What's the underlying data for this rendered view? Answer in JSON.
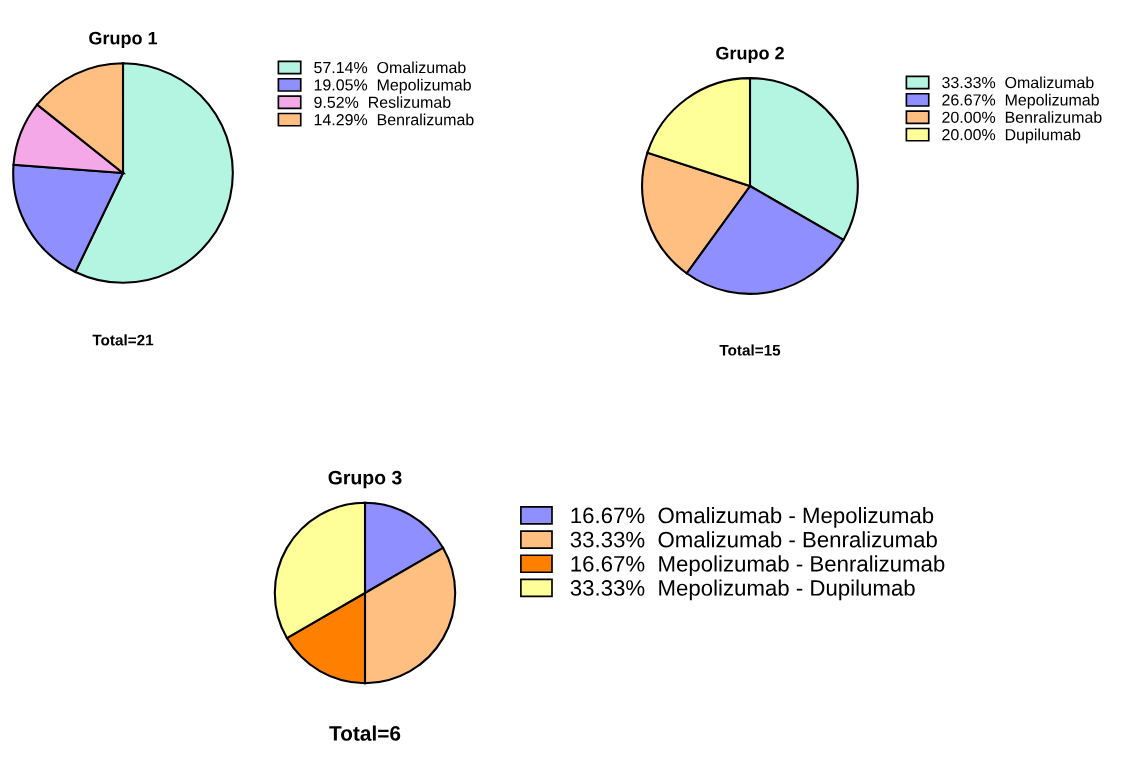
{
  "chart_data": [
    {
      "type": "pie",
      "title": "Grupo 1",
      "categories": [
        "Omalizumab",
        "Mepolizumab",
        "Reslizumab",
        "Benralizumab"
      ],
      "values": [
        57.14,
        19.05,
        9.52,
        14.29
      ],
      "value_labels": [
        "57.14%",
        "19.05%",
        "9.52%",
        "14.29%"
      ],
      "colors": [
        "#b3f5e0",
        "#8f8fff",
        "#f5a8e8",
        "#ffbf80"
      ],
      "legend": "right",
      "annotations": [
        "Total=21"
      ]
    },
    {
      "type": "pie",
      "title": "Grupo 2",
      "categories": [
        "Omalizumab",
        "Mepolizumab",
        "Benralizumab",
        "Dupilumab"
      ],
      "values": [
        33.33,
        26.67,
        20.0,
        20.0
      ],
      "value_labels": [
        "33.33%",
        "26.67%",
        "20.00%",
        "20.00%"
      ],
      "colors": [
        "#b3f5e0",
        "#8f8fff",
        "#ffbf80",
        "#ffff99"
      ],
      "legend": "right",
      "annotations": [
        "Total=15"
      ]
    },
    {
      "type": "pie",
      "title": "Grupo 3",
      "categories": [
        "Omalizumab - Mepolizumab",
        "Omalizumab - Benralizumab",
        "Mepolizumab - Benralizumab",
        "Mepolizumab - Dupilumab"
      ],
      "values": [
        16.67,
        33.33,
        16.67,
        33.33
      ],
      "value_labels": [
        "16.67%",
        "33.33%",
        "16.67%",
        "33.33%"
      ],
      "colors": [
        "#8f8fff",
        "#ffbf80",
        "#ff8000",
        "#ffff99"
      ],
      "legend": "right",
      "annotations": [
        "Total=6"
      ]
    }
  ]
}
